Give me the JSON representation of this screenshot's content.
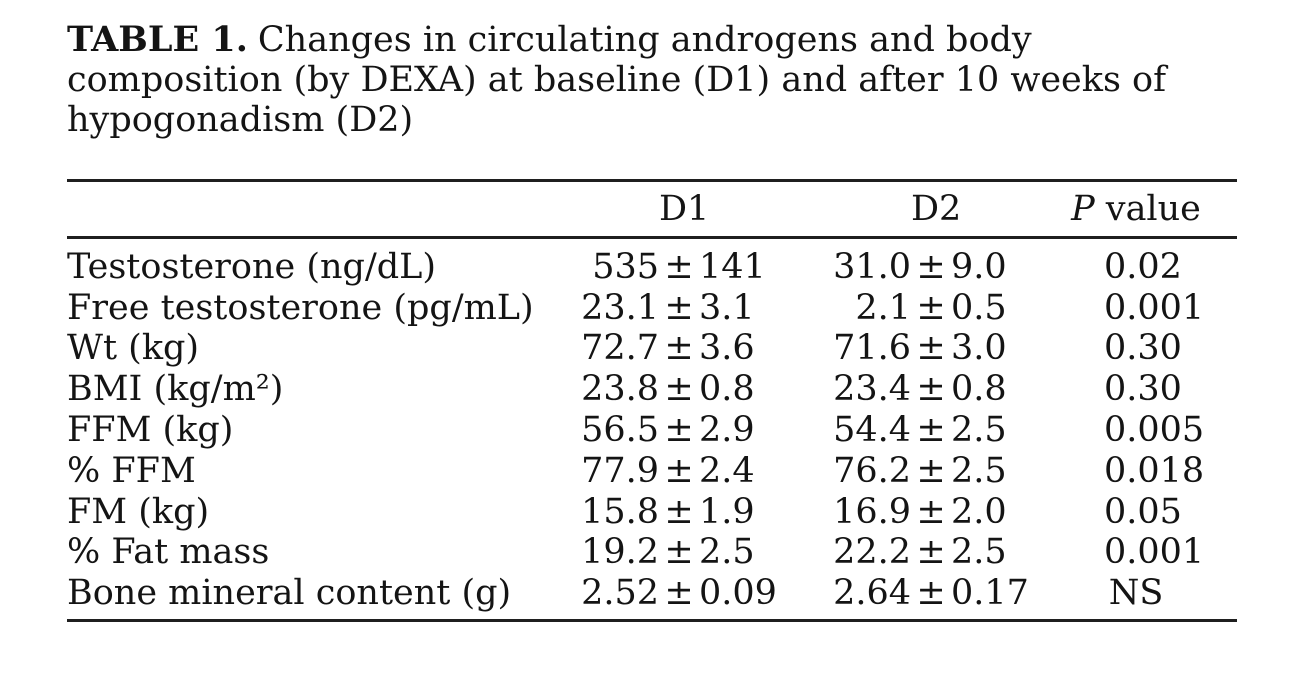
{
  "title": {
    "label": "TABLE 1.",
    "lines": [
      "Changes in circulating androgens and body",
      "composition (by DEXA) at baseline (D1) and after 10 weeks of",
      "hypogonadism (D2)"
    ]
  },
  "table": {
    "pm_symbol": "±",
    "header": {
      "d1": "D1",
      "d2": "D2",
      "p_italic": "P",
      "p_rest": " value"
    },
    "rows": [
      {
        "label": "Testosterone (ng/dL)",
        "d1_mean": "535",
        "d1_sd": "141",
        "d2_mean": "31.0",
        "d2_sd": "9.0",
        "p": "0.02"
      },
      {
        "label": "Free testosterone (pg/mL)",
        "d1_mean": "23.1",
        "d1_sd": "3.1",
        "d2_mean": "2.1",
        "d2_sd": "0.5",
        "p": "0.001"
      },
      {
        "label": "Wt (kg)",
        "d1_mean": "72.7",
        "d1_sd": "3.6",
        "d2_mean": "71.6",
        "d2_sd": "3.0",
        "p": "0.30"
      },
      {
        "label": "BMI (kg/m²)",
        "d1_mean": "23.8",
        "d1_sd": "0.8",
        "d2_mean": "23.4",
        "d2_sd": "0.8",
        "p": "0.30"
      },
      {
        "label": "FFM (kg)",
        "d1_mean": "56.5",
        "d1_sd": "2.9",
        "d2_mean": "54.4",
        "d2_sd": "2.5",
        "p": "0.005"
      },
      {
        "label": "% FFM",
        "d1_mean": "77.9",
        "d1_sd": "2.4",
        "d2_mean": "76.2",
        "d2_sd": "2.5",
        "p": "0.018"
      },
      {
        "label": "FM (kg)",
        "d1_mean": "15.8",
        "d1_sd": "1.9",
        "d2_mean": "16.9",
        "d2_sd": "2.0",
        "p": "0.05"
      },
      {
        "label": "% Fat mass",
        "d1_mean": "19.2",
        "d1_sd": "2.5",
        "d2_mean": "22.2",
        "d2_sd": "2.5",
        "p": "0.001"
      },
      {
        "label": "Bone mineral content (g)",
        "d1_mean": "2.52",
        "d1_sd": "0.09",
        "d2_mean": "2.64",
        "d2_sd": "0.17",
        "p": "NS"
      }
    ]
  },
  "colors": {
    "background": "#ffffff",
    "text": "#141414",
    "rule": "#1f1f1f"
  }
}
